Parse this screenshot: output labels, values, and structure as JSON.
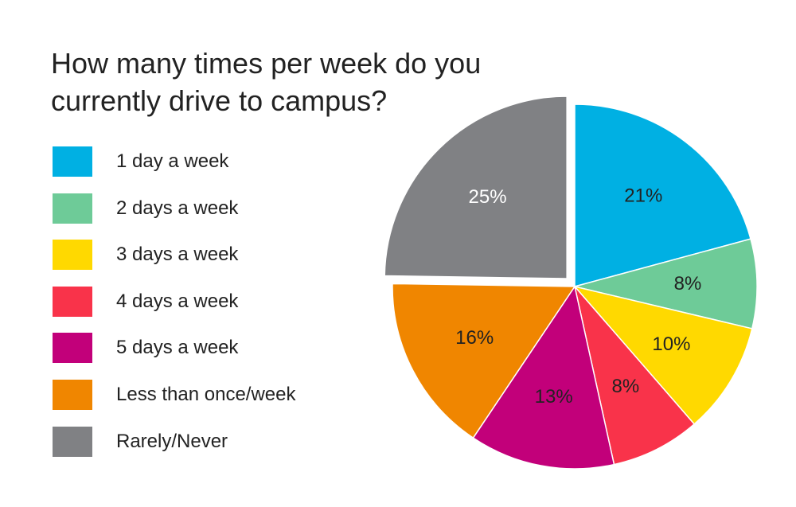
{
  "chart_data": {
    "type": "pie",
    "title": "How many times per week do you currently drive to campus?",
    "slices": [
      {
        "label": "1 day a week",
        "value": 21,
        "display": "21%",
        "color": "#00b0e3",
        "label_color": "#222222",
        "exploded": false
      },
      {
        "label": "2 days a week",
        "value": 8,
        "display": "8%",
        "color": "#6ecb98",
        "label_color": "#222222",
        "exploded": false
      },
      {
        "label": "3 days a week",
        "value": 10,
        "display": "10%",
        "color": "#ffd900",
        "label_color": "#222222",
        "exploded": false
      },
      {
        "label": "4 days a week",
        "value": 8,
        "display": "8%",
        "color": "#f9334a",
        "label_color": "#222222",
        "exploded": false
      },
      {
        "label": "5 days a week",
        "value": 13,
        "display": "13%",
        "color": "#c2007a",
        "label_color": "#222222",
        "exploded": false
      },
      {
        "label": "Less than once/week",
        "value": 16,
        "display": "16%",
        "color": "#f08600",
        "label_color": "#222222",
        "exploded": false
      },
      {
        "label": "Rarely/Never",
        "value": 25,
        "display": "25%",
        "color": "#808184",
        "label_color": "#ffffff",
        "exploded": true
      }
    ],
    "legend_position": "left"
  }
}
